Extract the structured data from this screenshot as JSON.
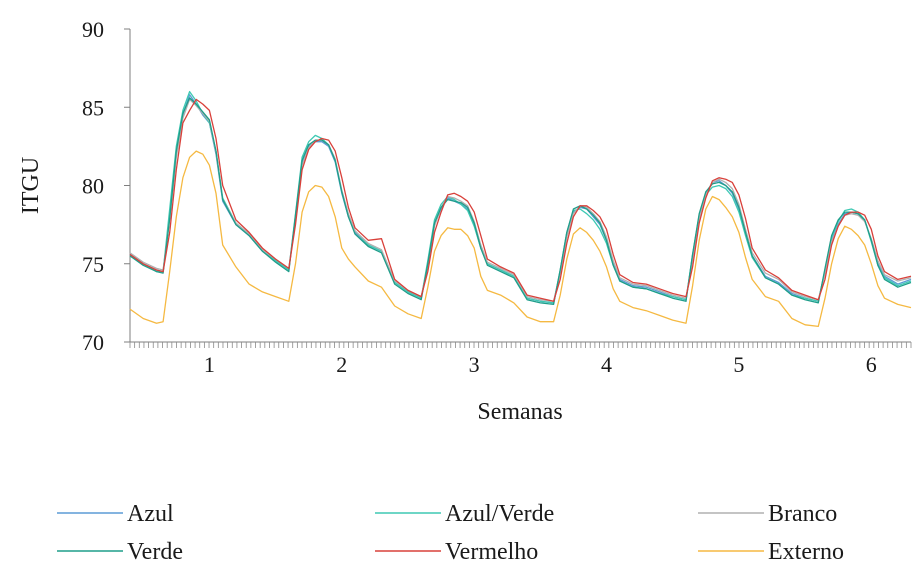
{
  "chart_data": {
    "type": "line",
    "title": "",
    "xlabel": "Semanas",
    "ylabel": "ITGU",
    "ylim": [
      70,
      90
    ],
    "yticks": [
      70,
      75,
      80,
      85,
      90
    ],
    "xlim": [
      0.4,
      6.3
    ],
    "xtick_labels": [
      "1",
      "2",
      "3",
      "4",
      "5",
      "6"
    ],
    "x": [
      0.4,
      0.5,
      0.6,
      0.65,
      0.7,
      0.75,
      0.8,
      0.85,
      0.9,
      0.95,
      1.0,
      1.05,
      1.1,
      1.2,
      1.3,
      1.4,
      1.5,
      1.6,
      1.65,
      1.7,
      1.75,
      1.8,
      1.85,
      1.9,
      1.95,
      2.0,
      2.05,
      2.1,
      2.2,
      2.3,
      2.4,
      2.5,
      2.6,
      2.65,
      2.7,
      2.75,
      2.8,
      2.85,
      2.9,
      2.95,
      3.0,
      3.05,
      3.1,
      3.2,
      3.3,
      3.4,
      3.5,
      3.6,
      3.65,
      3.7,
      3.75,
      3.8,
      3.85,
      3.9,
      3.95,
      4.0,
      4.05,
      4.1,
      4.2,
      4.3,
      4.4,
      4.5,
      4.6,
      4.65,
      4.7,
      4.75,
      4.8,
      4.85,
      4.9,
      4.95,
      5.0,
      5.05,
      5.1,
      5.2,
      5.3,
      5.4,
      5.5,
      5.6,
      5.65,
      5.7,
      5.75,
      5.8,
      5.85,
      5.9,
      5.95,
      6.0,
      6.05,
      6.1,
      6.2,
      6.3
    ],
    "legend_position": "bottom",
    "series": [
      {
        "name": "Azul",
        "color": "#5b9bd5",
        "values": [
          75.6,
          75.0,
          74.6,
          74.5,
          78.0,
          82.0,
          84.5,
          85.8,
          85.2,
          84.5,
          84.0,
          82.0,
          79.0,
          77.5,
          76.8,
          75.8,
          75.2,
          74.6,
          78.0,
          81.5,
          82.5,
          82.8,
          82.8,
          82.5,
          81.5,
          79.5,
          78.0,
          77.0,
          76.2,
          75.8,
          73.8,
          73.2,
          72.8,
          75.0,
          77.5,
          78.5,
          79.2,
          79.0,
          78.8,
          78.5,
          77.5,
          76.0,
          75.0,
          74.6,
          74.2,
          72.8,
          72.6,
          72.5,
          74.5,
          76.8,
          78.3,
          78.6,
          78.5,
          78.0,
          77.5,
          76.5,
          75.0,
          74.0,
          73.6,
          73.5,
          73.2,
          72.9,
          72.7,
          75.5,
          78.0,
          79.5,
          80.2,
          80.3,
          80.0,
          79.5,
          78.5,
          77.0,
          75.5,
          74.2,
          73.8,
          73.1,
          72.8,
          72.6,
          74.5,
          76.5,
          77.5,
          78.2,
          78.3,
          78.2,
          77.8,
          76.5,
          75.0,
          74.2,
          73.7,
          74.0
        ]
      },
      {
        "name": "Azul/Verde",
        "color": "#3ec9b3",
        "values": [
          75.5,
          75.0,
          74.5,
          74.5,
          78.5,
          82.5,
          84.8,
          86.0,
          85.4,
          84.6,
          84.0,
          82.2,
          79.2,
          77.6,
          76.9,
          75.9,
          75.2,
          74.6,
          78.2,
          81.8,
          82.8,
          83.2,
          83.0,
          82.6,
          81.6,
          79.6,
          78.1,
          77.1,
          76.2,
          75.8,
          73.8,
          73.2,
          72.8,
          75.2,
          77.8,
          78.8,
          79.3,
          79.1,
          78.8,
          78.4,
          77.4,
          76.0,
          75.0,
          74.6,
          74.2,
          72.8,
          72.6,
          72.5,
          74.6,
          77.0,
          78.4,
          78.5,
          78.2,
          77.8,
          77.2,
          76.3,
          74.9,
          73.9,
          73.5,
          73.4,
          73.1,
          72.9,
          72.7,
          75.6,
          78.1,
          79.4,
          79.9,
          80.0,
          79.8,
          79.3,
          78.3,
          76.8,
          75.4,
          74.1,
          73.7,
          73.0,
          72.8,
          72.6,
          74.6,
          76.7,
          77.7,
          78.4,
          78.5,
          78.3,
          77.8,
          76.4,
          74.9,
          74.1,
          73.6,
          73.9
        ]
      },
      {
        "name": "Branco",
        "color": "#b0b0b0",
        "values": [
          75.7,
          75.1,
          74.7,
          74.6,
          77.8,
          81.8,
          84.3,
          85.5,
          85.1,
          84.6,
          84.1,
          82.1,
          79.1,
          77.6,
          76.9,
          75.9,
          75.3,
          74.7,
          77.9,
          81.3,
          82.4,
          82.9,
          82.9,
          82.6,
          81.7,
          79.7,
          78.2,
          77.1,
          76.3,
          75.9,
          73.9,
          73.3,
          72.9,
          74.9,
          77.4,
          78.6,
          79.3,
          79.2,
          79.0,
          78.7,
          77.7,
          76.2,
          75.1,
          74.7,
          74.3,
          72.9,
          72.7,
          72.6,
          74.4,
          76.7,
          78.2,
          78.7,
          78.6,
          78.2,
          77.7,
          76.7,
          75.2,
          74.1,
          73.7,
          73.6,
          73.3,
          73.0,
          72.8,
          75.3,
          77.9,
          79.4,
          80.2,
          80.4,
          80.2,
          79.8,
          78.8,
          77.2,
          75.7,
          74.4,
          74.0,
          73.2,
          72.9,
          72.7,
          74.4,
          76.4,
          77.4,
          78.1,
          78.2,
          78.1,
          77.7,
          76.6,
          75.2,
          74.3,
          73.9,
          74.1
        ]
      },
      {
        "name": "Verde",
        "color": "#1f9d8a",
        "values": [
          75.5,
          74.9,
          74.5,
          74.4,
          77.9,
          82.2,
          84.6,
          85.6,
          85.2,
          84.7,
          84.2,
          82.2,
          79.1,
          77.5,
          76.8,
          75.8,
          75.1,
          74.5,
          78.1,
          81.6,
          82.6,
          82.9,
          82.9,
          82.6,
          81.6,
          79.6,
          78.0,
          76.9,
          76.1,
          75.7,
          73.7,
          73.1,
          72.7,
          75.0,
          77.6,
          78.6,
          79.1,
          79.0,
          78.9,
          78.6,
          77.6,
          76.0,
          74.9,
          74.5,
          74.1,
          72.7,
          72.5,
          72.4,
          74.6,
          77.0,
          78.5,
          78.7,
          78.5,
          78.1,
          77.6,
          76.5,
          74.9,
          73.9,
          73.5,
          73.4,
          73.1,
          72.8,
          72.6,
          75.6,
          78.2,
          79.6,
          80.1,
          80.2,
          80.0,
          79.6,
          78.6,
          77.0,
          75.5,
          74.1,
          73.7,
          73.0,
          72.7,
          72.5,
          74.7,
          76.8,
          77.8,
          78.3,
          78.3,
          78.2,
          77.8,
          76.5,
          74.9,
          74.0,
          73.5,
          73.8
        ]
      },
      {
        "name": "Vermelho",
        "color": "#d9403a",
        "values": [
          75.6,
          75.0,
          74.6,
          74.5,
          77.0,
          81.0,
          84.0,
          84.8,
          85.5,
          85.2,
          84.8,
          83.0,
          80.0,
          77.8,
          77.0,
          76.0,
          75.3,
          74.7,
          77.5,
          81.0,
          82.3,
          82.8,
          83.0,
          82.9,
          82.2,
          80.5,
          78.6,
          77.3,
          76.5,
          76.6,
          74.0,
          73.3,
          72.9,
          74.5,
          77.0,
          78.3,
          79.4,
          79.5,
          79.3,
          79.0,
          78.3,
          76.8,
          75.3,
          74.8,
          74.4,
          73.0,
          72.8,
          72.6,
          74.0,
          76.3,
          78.0,
          78.7,
          78.7,
          78.4,
          78.0,
          77.2,
          75.6,
          74.3,
          73.8,
          73.7,
          73.4,
          73.1,
          72.9,
          74.8,
          77.6,
          79.2,
          80.3,
          80.5,
          80.4,
          80.2,
          79.4,
          77.9,
          76.0,
          74.6,
          74.1,
          73.3,
          73.0,
          72.7,
          74.0,
          76.2,
          77.4,
          78.1,
          78.3,
          78.3,
          78.1,
          77.2,
          75.5,
          74.5,
          74.0,
          74.2
        ]
      },
      {
        "name": "Externo",
        "color": "#f5b942",
        "values": [
          72.1,
          71.5,
          71.2,
          71.3,
          74.5,
          78.0,
          80.5,
          81.8,
          82.2,
          82.0,
          81.3,
          79.5,
          76.2,
          74.8,
          73.7,
          73.2,
          72.9,
          72.6,
          75.0,
          78.3,
          79.6,
          80.0,
          79.9,
          79.3,
          78.0,
          76.0,
          75.3,
          74.8,
          73.9,
          73.5,
          72.3,
          71.8,
          71.5,
          73.5,
          75.8,
          76.8,
          77.3,
          77.2,
          77.2,
          76.8,
          76.0,
          74.2,
          73.3,
          73.0,
          72.5,
          71.6,
          71.3,
          71.3,
          73.0,
          75.3,
          76.9,
          77.3,
          77.0,
          76.5,
          75.8,
          74.8,
          73.4,
          72.6,
          72.2,
          72.0,
          71.7,
          71.4,
          71.2,
          73.6,
          76.5,
          78.5,
          79.3,
          79.1,
          78.6,
          78.0,
          77.0,
          75.4,
          74.0,
          72.9,
          72.6,
          71.5,
          71.1,
          71.0,
          72.8,
          75.0,
          76.6,
          77.4,
          77.2,
          76.8,
          76.2,
          75.0,
          73.6,
          72.8,
          72.4,
          72.2
        ]
      }
    ]
  }
}
